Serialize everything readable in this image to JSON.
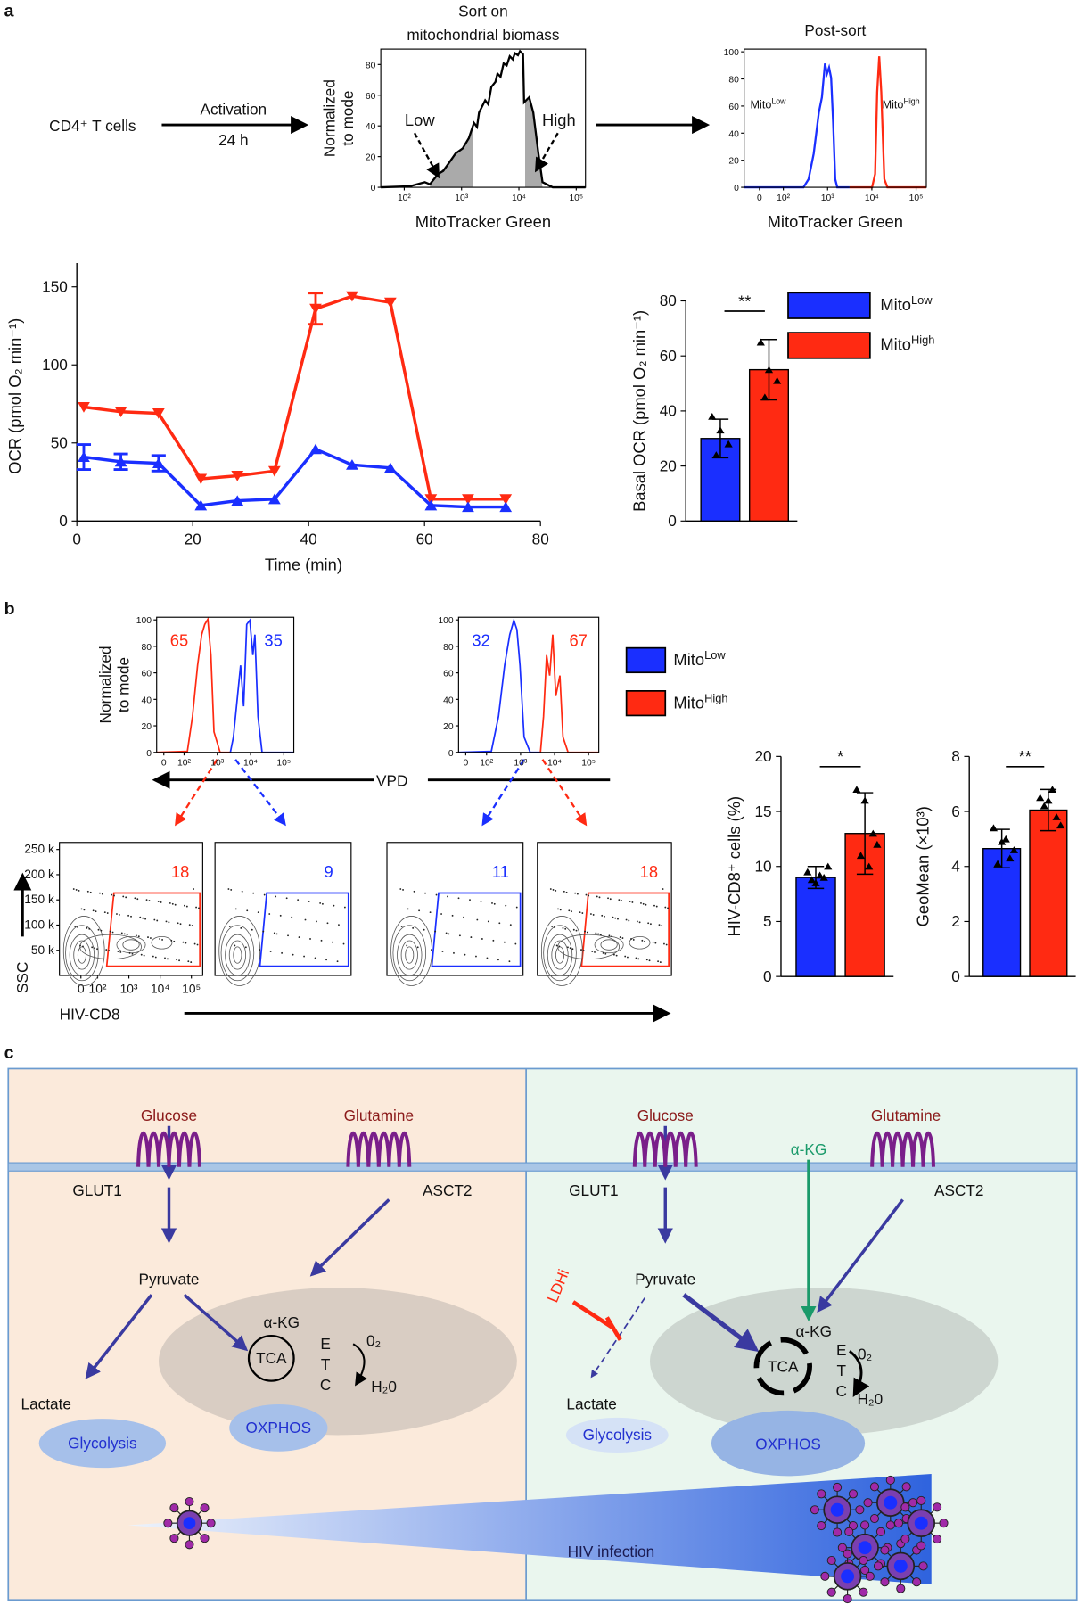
{
  "panel_labels": [
    "a",
    "b",
    "c"
  ],
  "panel_a": {
    "cells": "CD4⁺ T cells",
    "activation": "Activation",
    "duration": "24 h"
  },
  "panel_b": {
    "vpd": "VPD",
    "ssc": "SSC",
    "hiv_cd8": "HIV-CD8",
    "legend": [
      {
        "name": {
          "text": "Mito",
          "sup": "Low"
        },
        "color": "#1a2fff"
      },
      {
        "name": {
          "text": "Mito",
          "sup": "High"
        },
        "color": "#ff2a12"
      }
    ]
  },
  "chart_data": [
    {
      "type": "flow-histogram",
      "title": [
        "Sort on",
        "mitochondrial biomass"
      ],
      "y_label": [
        "Normalized",
        "to mode"
      ],
      "x_label": "MitoTracker Green",
      "gates": [
        "Low",
        "High"
      ],
      "xscale": "log",
      "xlim": [
        39,
        145000
      ],
      "ylim": [
        0,
        90
      ],
      "xticks": [
        {
          "value": 100,
          "label": "10²"
        },
        {
          "value": 1000,
          "label": "10³"
        },
        {
          "value": 10000,
          "label": "10⁴"
        },
        {
          "value": 100000,
          "label": "10⁵"
        }
      ],
      "yticks": [
        0,
        20,
        40,
        60,
        80
      ]
    },
    {
      "type": "flow-histogram",
      "title": "Post-sort",
      "x_label": "MitoTracker Green",
      "labels": [
        {
          "name": {
            "text": "Mito",
            "sup": "Low"
          },
          "color": "#1a2fff"
        },
        {
          "name": {
            "text": "Mito",
            "sup": "High"
          },
          "color": "#ff2a12"
        }
      ],
      "xscale": "log",
      "xlim": [
        13,
        170000
      ],
      "ylim": [
        0,
        102
      ],
      "xticks": [
        0,
        {
          "value": 100,
          "label": "10²"
        },
        {
          "value": 1000,
          "label": "10³"
        },
        {
          "value": 10000,
          "label": "10⁴"
        },
        {
          "value": 100000,
          "label": "10⁵"
        }
      ],
      "yticks": [
        0,
        20,
        40,
        60,
        80,
        100
      ]
    },
    {
      "type": "line",
      "x_label": "Time (min)",
      "y_label": "OCR (pmol O₂ min⁻¹)",
      "x": [
        1.2,
        7.6,
        14.1,
        21.4,
        27.7,
        34.1,
        41.2,
        47.5,
        54.1,
        61.1,
        67.5,
        74
      ],
      "series": [
        {
          "color": "#ff2a12",
          "marker": "triangle-down",
          "values": [
            73,
            70,
            69,
            27,
            29,
            32,
            136,
            144,
            140,
            14,
            14,
            14
          ],
          "errors": [
            null,
            null,
            null,
            null,
            null,
            null,
            10,
            null,
            null,
            null,
            null,
            null
          ]
        },
        {
          "color": "#1a2fff",
          "marker": "triangle-up",
          "values": [
            41,
            38,
            37,
            10,
            13,
            14,
            46,
            36,
            34,
            10,
            9,
            9
          ],
          "errors": [
            8,
            5,
            5,
            null,
            null,
            null,
            null,
            null,
            null,
            null,
            null,
            null
          ]
        }
      ],
      "xlim": [
        0,
        80
      ],
      "ylim": [
        0,
        160
      ],
      "xticks": [
        0,
        20,
        40,
        60,
        80
      ],
      "yticks": [
        0,
        50,
        100,
        150
      ]
    },
    {
      "type": "bar",
      "y_label": "Basal OCR (pmol O₂ min⁻¹)",
      "significance": "**",
      "ylim": [
        0,
        80
      ],
      "yticks": [
        0,
        20,
        40,
        60,
        80
      ],
      "series": [
        {
          "name": {
            "text": "Mito",
            "sup": "Low"
          },
          "color": "#1a2fff",
          "value": 30,
          "error": 7,
          "points": [
            38,
            33,
            28,
            24
          ]
        },
        {
          "name": {
            "text": "Mito",
            "sup": "High"
          },
          "color": "#ff2a12",
          "value": 55,
          "error": 11,
          "points": [
            65,
            55,
            51,
            45
          ]
        }
      ]
    },
    {
      "type": "flow-histogram",
      "y_label": [
        "Normalized",
        "to mode"
      ],
      "xscale": "log",
      "xlim": [
        15,
        200000
      ],
      "ylim": [
        0,
        102
      ],
      "gate_percents": [
        {
          "value": 65,
          "color": "#ff2a12"
        },
        {
          "value": 35,
          "color": "#1a2fff"
        }
      ],
      "xticks": [
        0,
        {
          "value": 100,
          "label": "10²"
        },
        {
          "value": 1000,
          "label": "10³"
        },
        {
          "value": 10000,
          "label": "10⁴"
        },
        {
          "value": 100000,
          "label": "10⁵"
        }
      ],
      "yticks": [
        0,
        20,
        40,
        60,
        80,
        100
      ]
    },
    {
      "type": "flow-histogram",
      "xscale": "log",
      "xlim": [
        15,
        200000
      ],
      "ylim": [
        0,
        102
      ],
      "gate_percents": [
        {
          "value": 32,
          "color": "#1a2fff"
        },
        {
          "value": 67,
          "color": "#ff2a12"
        }
      ],
      "xticks": [
        0,
        {
          "value": 100,
          "label": "10²"
        },
        {
          "value": 1000,
          "label": "10³"
        },
        {
          "value": 10000,
          "label": "10⁴"
        },
        {
          "value": 100000,
          "label": "10⁵"
        }
      ],
      "yticks": [
        0,
        20,
        40,
        60,
        80,
        100
      ]
    },
    {
      "type": "contour",
      "gate_percent": {
        "value": 18,
        "color": "#ff2a12"
      },
      "xscale": "log",
      "xlim": [
        6,
        230000
      ],
      "ylim": [
        0,
        264000
      ],
      "xticks": [
        0,
        {
          "value": 100,
          "label": "10²"
        },
        {
          "value": 1000,
          "label": "10³"
        },
        {
          "value": 10000,
          "label": "10⁴"
        },
        {
          "value": 100000,
          "label": "10⁵"
        }
      ],
      "yticks": [
        {
          "value": 50000,
          "label": "50 k"
        },
        {
          "value": 100000,
          "label": "100 k"
        },
        {
          "value": 150000,
          "label": "150 k"
        },
        {
          "value": 200000,
          "label": "200 k"
        },
        {
          "value": 250000,
          "label": "250 k"
        }
      ]
    },
    {
      "type": "contour",
      "gate_percent": {
        "value": 9,
        "color": "#1a2fff"
      }
    },
    {
      "type": "contour",
      "gate_percent": {
        "value": 11,
        "color": "#1a2fff"
      }
    },
    {
      "type": "contour",
      "gate_percent": {
        "value": 18,
        "color": "#ff2a12"
      }
    },
    {
      "type": "bar",
      "y_label": "HIV-CD8⁺ cells (%)",
      "significance": "*",
      "ylim": [
        0,
        20
      ],
      "yticks": [
        0,
        5,
        10,
        15,
        20
      ],
      "series": [
        {
          "color": "#1a2fff",
          "value": 9,
          "error": 1,
          "points": [
            9.5,
            8.5,
            9,
            8.8,
            9.2,
            10
          ]
        },
        {
          "color": "#ff2a12",
          "value": 13,
          "error": 3.7,
          "points": [
            17,
            16,
            13,
            11,
            10,
            12
          ]
        }
      ]
    },
    {
      "type": "bar",
      "y_label": "GeoMean (×10³)",
      "significance": "**",
      "ylim": [
        0,
        8
      ],
      "yticks": [
        0,
        2,
        4,
        6,
        8
      ],
      "series": [
        {
          "color": "#1a2fff",
          "value": 4.65,
          "error": 0.7,
          "points": [
            5.4,
            4.9,
            4.3,
            4.1,
            5.0,
            4.6
          ]
        },
        {
          "color": "#ff2a12",
          "value": 6.05,
          "error": 0.75,
          "points": [
            6.5,
            6.4,
            5.8,
            6.2,
            6.8,
            5.5
          ]
        }
      ]
    }
  ],
  "panel_c": {
    "left": {
      "glucose": "Glucose",
      "glutamine": "Glutamine",
      "glut1": "GLUT1",
      "asct2": "ASCT2",
      "pyruvate": "Pyruvate",
      "lactate": "Lactate",
      "glycolysis": "Glycolysis",
      "akg": "α-KG",
      "tca": "TCA",
      "etc": [
        "E",
        "T",
        "C"
      ],
      "o2": "0₂",
      "h2o": "H₂0",
      "oxphos": "OXPHOS"
    },
    "right": {
      "glucose": "Glucose",
      "glutamine": "Glutamine",
      "glut1": "GLUT1",
      "asct2": "ASCT2",
      "pyruvate": "Pyruvate",
      "lactate": "Lactate",
      "glycolysis": "Glycolysis",
      "akg": "α-KG",
      "tca": "TCA",
      "etc": [
        "E",
        "T",
        "C"
      ],
      "o2": "0₂",
      "h2o": "H₂0",
      "oxphos": "OXPHOS",
      "akg_supplement": "α-KG",
      "ldhi": "LDHi"
    },
    "hiv_infection": "HIV infection"
  }
}
